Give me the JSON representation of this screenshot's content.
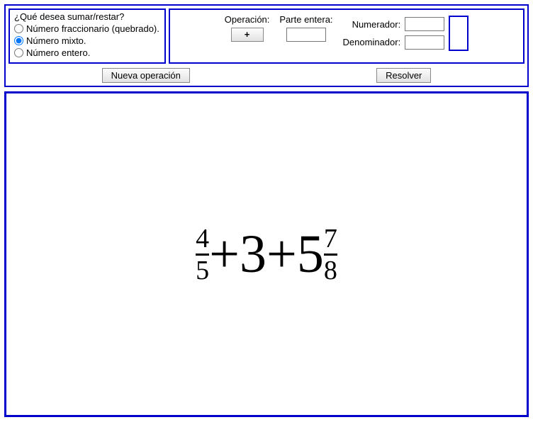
{
  "choice": {
    "title": "¿Qué desea sumar/restar?",
    "options": [
      {
        "label": "Número fraccionario (quebrado).",
        "selected": false
      },
      {
        "label": "Número mixto.",
        "selected": true
      },
      {
        "label": "Número entero.",
        "selected": false
      }
    ]
  },
  "inputs": {
    "operation_label": "Operación:",
    "operation_value": "+",
    "whole_label": "Parte entera:",
    "whole_value": "",
    "numerator_label": "Numerador:",
    "numerator_value": "",
    "denominator_label": "Denominador:",
    "denominator_value": ""
  },
  "buttons": {
    "new_op": "Nueva operación",
    "solve": "Resolver"
  },
  "expression": {
    "term1": {
      "type": "fraction",
      "num": "4",
      "den": "5"
    },
    "op1": "+",
    "term2": {
      "type": "integer",
      "value": "3"
    },
    "op2": "+",
    "term3": {
      "type": "mixed",
      "whole": "5",
      "num": "7",
      "den": "8"
    }
  },
  "colors": {
    "border": "#0000cc",
    "background": "#ffffff"
  }
}
